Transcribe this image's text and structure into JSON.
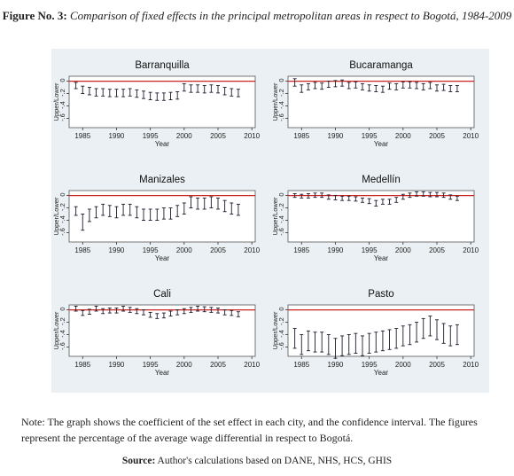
{
  "figure": {
    "label": "Figure No. 3:",
    "title": "Comparison of fixed effects in the principal metropolitan areas in respect to Bogotá, 1984-2009"
  },
  "note": "Note: The graph shows the coefficient of the set effect in each city, and the confidence interval. The figures represent the percentage of the average wage differential in respect to Bogotá.",
  "source": {
    "label": "Source:",
    "text": "Author's calculations based on DANE, NHS, HCS, GHIS"
  },
  "colors": {
    "panel_background": "#eaf0f3",
    "plot_background": "#ffffff",
    "reference_line": "#cc2222",
    "interval": "#1a1a2e"
  },
  "chart_data": [
    {
      "type": "errorbar",
      "title": "Barranquilla",
      "xlabel": "Year",
      "ylabel": "Upper/Lower",
      "xticks": [
        1985,
        1990,
        1995,
        2000,
        2005,
        2010
      ],
      "yticks": [
        0,
        -0.2,
        -0.4,
        -0.6
      ],
      "ytick_labels": [
        "0",
        "-.2",
        "-.4",
        "-.6"
      ],
      "xlim": [
        1983,
        2010.5
      ],
      "ylim": [
        -0.75,
        0.08
      ],
      "reference_line": 0,
      "x": [
        1984,
        1985,
        1986,
        1987,
        1988,
        1989,
        1990,
        1991,
        1992,
        1993,
        1994,
        1995,
        1996,
        1997,
        1998,
        1999,
        2000,
        2001,
        2002,
        2003,
        2004,
        2005,
        2006,
        2007,
        2008
      ],
      "upper": [
        -0.02,
        -0.08,
        -0.1,
        -0.12,
        -0.12,
        -0.13,
        -0.13,
        -0.13,
        -0.12,
        -0.14,
        -0.16,
        -0.18,
        -0.19,
        -0.19,
        -0.18,
        -0.17,
        -0.04,
        -0.06,
        -0.06,
        -0.07,
        -0.06,
        -0.07,
        -0.1,
        -0.12,
        -0.13
      ],
      "lower": [
        -0.12,
        -0.2,
        -0.22,
        -0.24,
        -0.24,
        -0.25,
        -0.25,
        -0.25,
        -0.24,
        -0.26,
        -0.28,
        -0.3,
        -0.31,
        -0.31,
        -0.3,
        -0.29,
        -0.16,
        -0.18,
        -0.18,
        -0.19,
        -0.18,
        -0.19,
        -0.22,
        -0.24,
        -0.25
      ]
    },
    {
      "type": "errorbar",
      "title": "Bucaramanga",
      "xlabel": "Year",
      "ylabel": "Upper/Lower",
      "xticks": [
        1985,
        1990,
        1995,
        2000,
        2005,
        2010
      ],
      "yticks": [
        0,
        -0.2,
        -0.4,
        -0.6
      ],
      "ytick_labels": [
        "0",
        "-.2",
        "-.4",
        "-.6"
      ],
      "xlim": [
        1983,
        2010.5
      ],
      "ylim": [
        -0.75,
        0.08
      ],
      "reference_line": 0,
      "x": [
        1984,
        1985,
        1986,
        1987,
        1988,
        1989,
        1990,
        1991,
        1992,
        1993,
        1994,
        1995,
        1996,
        1997,
        1998,
        1999,
        2000,
        2001,
        2002,
        2003,
        2004,
        2005,
        2006,
        2007,
        2008
      ],
      "upper": [
        0.04,
        -0.06,
        -0.04,
        -0.02,
        -0.03,
        0.0,
        0.01,
        0.02,
        -0.02,
        -0.01,
        -0.04,
        -0.06,
        -0.07,
        -0.08,
        -0.03,
        -0.04,
        -0.01,
        -0.01,
        -0.02,
        -0.04,
        -0.02,
        -0.06,
        -0.05,
        -0.07,
        -0.07
      ],
      "lower": [
        -0.08,
        -0.18,
        -0.14,
        -0.12,
        -0.13,
        -0.1,
        -0.09,
        -0.08,
        -0.12,
        -0.11,
        -0.14,
        -0.16,
        -0.17,
        -0.18,
        -0.13,
        -0.14,
        -0.11,
        -0.11,
        -0.12,
        -0.14,
        -0.12,
        -0.16,
        -0.15,
        -0.17,
        -0.17
      ]
    },
    {
      "type": "errorbar",
      "title": "Manizales",
      "xlabel": "Year",
      "ylabel": "Upper/Lower",
      "xticks": [
        1985,
        1990,
        1995,
        2000,
        2005,
        2010
      ],
      "yticks": [
        0,
        -0.2,
        -0.4,
        -0.6
      ],
      "ytick_labels": [
        "0",
        "-.2",
        "-.4",
        "-.6"
      ],
      "xlim": [
        1983,
        2010.5
      ],
      "ylim": [
        -0.75,
        0.08
      ],
      "reference_line": 0,
      "x": [
        1984,
        1985,
        1986,
        1987,
        1988,
        1989,
        1990,
        1991,
        1992,
        1993,
        1994,
        1995,
        1996,
        1997,
        1998,
        1999,
        2000,
        2001,
        2002,
        2003,
        2004,
        2005,
        2006,
        2007,
        2008
      ],
      "upper": [
        -0.18,
        -0.3,
        -0.22,
        -0.18,
        -0.14,
        -0.16,
        -0.18,
        -0.14,
        -0.14,
        -0.18,
        -0.22,
        -0.22,
        -0.22,
        -0.2,
        -0.2,
        -0.16,
        -0.12,
        -0.02,
        -0.04,
        -0.04,
        -0.02,
        -0.04,
        -0.08,
        -0.12,
        -0.14
      ],
      "lower": [
        -0.32,
        -0.56,
        -0.42,
        -0.36,
        -0.32,
        -0.34,
        -0.36,
        -0.32,
        -0.32,
        -0.36,
        -0.4,
        -0.4,
        -0.4,
        -0.38,
        -0.38,
        -0.34,
        -0.3,
        -0.2,
        -0.22,
        -0.22,
        -0.2,
        -0.22,
        -0.26,
        -0.3,
        -0.32
      ]
    },
    {
      "type": "errorbar",
      "title": "Medellín",
      "xlabel": "Year",
      "ylabel": "Upper/Lower",
      "xticks": [
        1985,
        1990,
        1995,
        2000,
        2005,
        2010
      ],
      "yticks": [
        0,
        -0.2,
        -0.4,
        -0.6
      ],
      "ytick_labels": [
        "0",
        "-.2",
        "-.4",
        "-.6"
      ],
      "xlim": [
        1983,
        2010.5
      ],
      "ylim": [
        -0.75,
        0.08
      ],
      "reference_line": 0,
      "x": [
        1984,
        1985,
        1986,
        1987,
        1988,
        1989,
        1990,
        1991,
        1992,
        1993,
        1994,
        1995,
        1996,
        1997,
        1998,
        1999,
        2000,
        2001,
        2002,
        2003,
        2004,
        2005,
        2006,
        2007,
        2008
      ],
      "upper": [
        0.03,
        0.02,
        0.03,
        0.04,
        0.04,
        0.01,
        0.0,
        -0.01,
        -0.01,
        -0.02,
        -0.04,
        -0.05,
        -0.08,
        -0.06,
        -0.06,
        -0.03,
        0.02,
        0.04,
        0.06,
        0.06,
        0.05,
        0.05,
        0.04,
        0.01,
        -0.01
      ],
      "lower": [
        -0.03,
        -0.04,
        -0.04,
        -0.03,
        -0.03,
        -0.06,
        -0.07,
        -0.08,
        -0.08,
        -0.09,
        -0.11,
        -0.13,
        -0.17,
        -0.14,
        -0.14,
        -0.11,
        -0.06,
        -0.03,
        -0.01,
        -0.01,
        -0.02,
        -0.02,
        -0.03,
        -0.06,
        -0.08
      ]
    },
    {
      "type": "errorbar",
      "title": "Cali",
      "xlabel": "Year",
      "ylabel": "Upper/Lower",
      "xticks": [
        1985,
        1990,
        1995,
        2000,
        2005,
        2010
      ],
      "yticks": [
        0,
        -0.2,
        -0.4,
        -0.6
      ],
      "ytick_labels": [
        "0",
        "-.2",
        "-.4",
        "-.6"
      ],
      "xlim": [
        1983,
        2010.5
      ],
      "ylim": [
        -0.75,
        0.08
      ],
      "reference_line": 0,
      "x": [
        1984,
        1985,
        1986,
        1987,
        1988,
        1989,
        1990,
        1991,
        1992,
        1993,
        1994,
        1995,
        1996,
        1997,
        1998,
        1999,
        2000,
        2001,
        2002,
        2003,
        2004,
        2005,
        2006,
        2007,
        2008
      ],
      "upper": [
        0.06,
        -0.01,
        0.01,
        0.06,
        0.02,
        0.03,
        0.03,
        0.06,
        0.04,
        0.02,
        0.0,
        -0.04,
        -0.06,
        -0.05,
        -0.02,
        0.0,
        0.02,
        0.04,
        0.06,
        0.05,
        0.04,
        0.03,
        0.0,
        -0.01,
        -0.03
      ],
      "lower": [
        -0.02,
        -0.09,
        -0.07,
        -0.02,
        -0.06,
        -0.05,
        -0.05,
        -0.02,
        -0.04,
        -0.06,
        -0.08,
        -0.12,
        -0.14,
        -0.13,
        -0.1,
        -0.08,
        -0.06,
        -0.04,
        -0.02,
        -0.03,
        -0.04,
        -0.05,
        -0.08,
        -0.09,
        -0.11
      ]
    },
    {
      "type": "errorbar",
      "title": "Pasto",
      "xlabel": "Year",
      "ylabel": "Upper/Lower",
      "xticks": [
        1985,
        1990,
        1995,
        2000,
        2005,
        2010
      ],
      "yticks": [
        0,
        -0.2,
        -0.4,
        -0.6
      ],
      "ytick_labels": [
        "0",
        "-.2",
        "-.4",
        "-.6"
      ],
      "xlim": [
        1983,
        2010.5
      ],
      "ylim": [
        -0.75,
        0.08
      ],
      "reference_line": 0,
      "x": [
        1984,
        1985,
        1986,
        1987,
        1988,
        1989,
        1990,
        1991,
        1992,
        1993,
        1994,
        1995,
        1996,
        1997,
        1998,
        1999,
        2000,
        2001,
        2002,
        2003,
        2004,
        2005,
        2006,
        2007,
        2008
      ],
      "upper": [
        -0.3,
        -0.4,
        -0.34,
        -0.36,
        -0.36,
        -0.4,
        -0.46,
        -0.42,
        -0.4,
        -0.38,
        -0.42,
        -0.38,
        -0.36,
        -0.34,
        -0.32,
        -0.3,
        -0.26,
        -0.24,
        -0.2,
        -0.14,
        -0.1,
        -0.16,
        -0.22,
        -0.26,
        -0.24
      ],
      "lower": [
        -0.62,
        -0.72,
        -0.66,
        -0.68,
        -0.68,
        -0.72,
        -0.78,
        -0.74,
        -0.72,
        -0.7,
        -0.74,
        -0.7,
        -0.68,
        -0.66,
        -0.64,
        -0.62,
        -0.58,
        -0.56,
        -0.52,
        -0.46,
        -0.42,
        -0.48,
        -0.54,
        -0.58,
        -0.56
      ]
    }
  ]
}
